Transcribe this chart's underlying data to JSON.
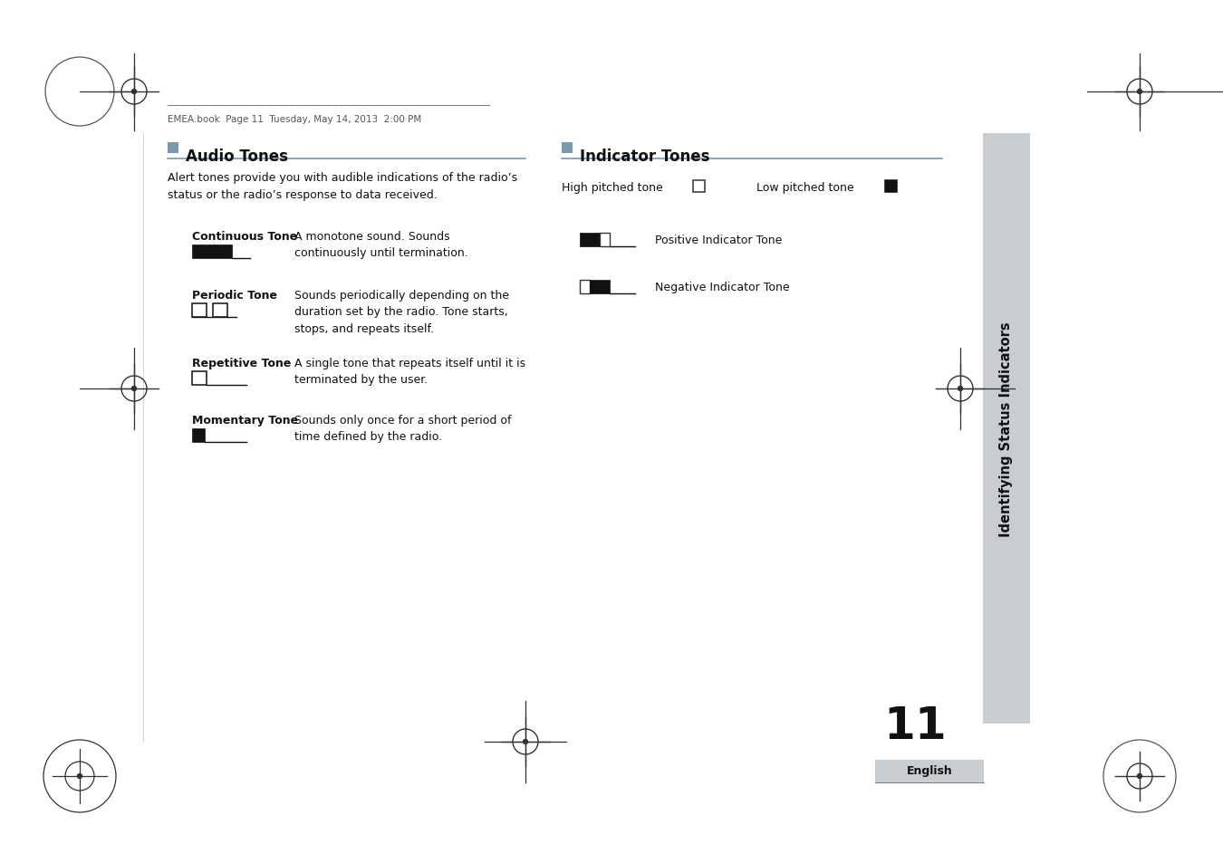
{
  "bg_color": "#ffffff",
  "page_width": 13.5,
  "page_height": 9.54,
  "header_text": "EMEA.book  Page 11  Tuesday, May 14, 2013  2:00 PM",
  "section_color": "#7a9ab0",
  "title_left": "Audio Tones",
  "title_right": "Indicator Tones",
  "sidebar_text": "Identifying Status Indicators",
  "sidebar_bg": "#c8cdd2",
  "page_num": "11",
  "english_label": "English",
  "intro_text": "Alert tones provide you with audible indications of the radio’s\nstatus or the radio’s response to data received.",
  "left_entries": [
    {
      "label": "Continuous Tone",
      "desc": "A monotone sound. Sounds\ncontinuously until termination.",
      "icon": "continuous"
    },
    {
      "label": "Periodic Tone",
      "desc": "Sounds periodically depending on the\nduration set by the radio. Tone starts,\nstops, and repeats itself.",
      "icon": "periodic"
    },
    {
      "label": "Repetitive Tone",
      "desc": "A single tone that repeats itself until it is\nterminated by the user.",
      "icon": "repetitive"
    },
    {
      "label": "Momentary Tone",
      "desc": "Sounds only once for a short period of\ntime defined by the radio.",
      "icon": "momentary"
    }
  ]
}
